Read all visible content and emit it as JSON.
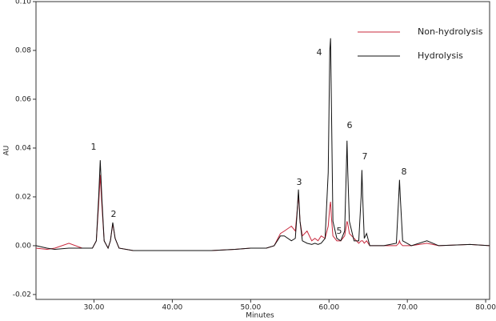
{
  "chart_data": {
    "type": "line",
    "xlabel": "Minutes",
    "ylabel": "AU",
    "xlim": [
      22.6,
      80.5
    ],
    "ylim": [
      -0.022,
      0.1
    ],
    "xticks": [
      {
        "value": 30,
        "label": "30.00"
      },
      {
        "value": 40,
        "label": "40.00"
      },
      {
        "value": 50,
        "label": "50.00"
      },
      {
        "value": 60,
        "label": "60.00"
      },
      {
        "value": 70,
        "label": "70.00"
      },
      {
        "value": 80,
        "label": "80.00"
      }
    ],
    "yticks": [
      {
        "value": -0.02,
        "label": "-0.02"
      },
      {
        "value": 0,
        "label": "0.00"
      },
      {
        "value": 0.02,
        "label": "0.02"
      },
      {
        "value": 0.04,
        "label": "0.04"
      },
      {
        "value": 0.06,
        "label": "0.06"
      },
      {
        "value": 0.08,
        "label": "0.08"
      },
      {
        "value": 0.1,
        "label": "0.10"
      }
    ],
    "legend": "upper right",
    "annotations": [
      "1",
      "2",
      "3",
      "4",
      "5",
      "6",
      "7",
      "8"
    ],
    "x": [
      22.6,
      24,
      25,
      26.8,
      28.5,
      29.8,
      30.3,
      30.6,
      30.8,
      31.0,
      31.3,
      31.8,
      32.1,
      32.4,
      32.7,
      33.2,
      35,
      40,
      45,
      48,
      50,
      52,
      53,
      53.8,
      54.3,
      55.2,
      55.7,
      55.9,
      56.1,
      56.3,
      56.6,
      57.2,
      57.8,
      58.2,
      58.6,
      59.0,
      59.5,
      59.9,
      60.1,
      60.2,
      60.3,
      60.5,
      61.0,
      61.5,
      62.0,
      62.2,
      62.3,
      62.4,
      62.6,
      63.2,
      63.8,
      64.1,
      64.2,
      64.3,
      64.5,
      64.8,
      65.2,
      67,
      68.6,
      68.9,
      69.0,
      69.1,
      69.4,
      70.5,
      72.5,
      74,
      78,
      80.5
    ],
    "series": [
      {
        "name": "Non-hydrolysis",
        "color": "#c8283c",
        "values": [
          -0.001,
          -0.0015,
          -0.001,
          0.001,
          -0.001,
          -0.001,
          0.002,
          0.017,
          0.029,
          0.017,
          0.002,
          -0.001,
          0.002,
          0.009,
          0.003,
          -0.001,
          -0.002,
          -0.002,
          -0.002,
          -0.0015,
          -0.001,
          -0.001,
          0.0,
          0.005,
          0.006,
          0.008,
          0.006,
          0.013,
          0.021,
          0.01,
          0.004,
          0.006,
          0.002,
          0.003,
          0.002,
          0.004,
          0.003,
          0.008,
          0.016,
          0.018,
          0.012,
          0.004,
          0.002,
          0.002,
          0.004,
          0.008,
          0.01,
          0.009,
          0.005,
          0.003,
          0.001,
          0.002,
          0.002,
          0.002,
          0.001,
          0.002,
          0.0,
          0.0,
          0.0,
          0.001,
          0.002,
          0.001,
          0.0,
          0.0,
          0.001,
          0.0,
          0.0005,
          0.0
        ]
      },
      {
        "name": "Hydrolysis",
        "color": "#111111",
        "values": [
          0,
          -0.001,
          -0.0015,
          -0.001,
          -0.001,
          -0.001,
          0.002,
          0.02,
          0.035,
          0.02,
          0.002,
          -0.001,
          0.002,
          0.0095,
          0.003,
          -0.001,
          -0.002,
          -0.002,
          -0.002,
          -0.0015,
          -0.001,
          -0.001,
          0.0,
          0.004,
          0.004,
          0.002,
          0.003,
          0.012,
          0.023,
          0.01,
          0.002,
          0.001,
          0.0005,
          0.001,
          0.0005,
          0.001,
          0.003,
          0.03,
          0.08,
          0.085,
          0.06,
          0.01,
          0.003,
          0.002,
          0.006,
          0.03,
          0.043,
          0.03,
          0.01,
          0.002,
          0.002,
          0.02,
          0.031,
          0.02,
          0.003,
          0.005,
          0.0,
          0.0,
          0.001,
          0.02,
          0.027,
          0.02,
          0.002,
          0.0,
          0.002,
          0.0,
          0.0005,
          0.0
        ]
      }
    ]
  }
}
